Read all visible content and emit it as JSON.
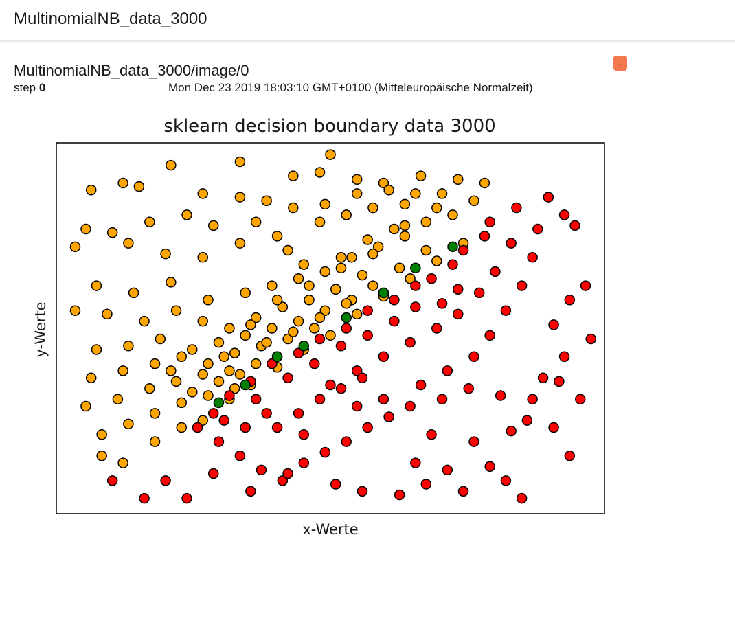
{
  "header": {
    "title": "MultinomialNB_data_3000"
  },
  "card": {
    "title": "MultinomialNB_data_3000/image/0",
    "step_label": "step",
    "step_value": "0",
    "timestamp": "Mon Dec 23 2019 18:03:10 GMT+0100 (Mitteleuropäische Normalzeit)",
    "menu_glyph": "."
  },
  "colors": {
    "accent": "#f4784e",
    "class_a": "#ffa500",
    "class_b": "#ff0000",
    "boundary": "#008000"
  },
  "chart_data": {
    "type": "scatter",
    "title": "sklearn decision boundary data 3000",
    "xlabel": "x-Werte",
    "ylabel": "y-Werte",
    "xlim": [
      0,
      100
    ],
    "ylim": [
      0,
      100
    ],
    "grid": false,
    "legend": "none",
    "series": [
      {
        "color": "#ffa500",
        "points": [
          [
            11,
            91
          ],
          [
            20,
            96
          ],
          [
            33,
            97
          ],
          [
            50,
            99
          ],
          [
            43,
            93
          ],
          [
            48,
            94
          ],
          [
            55,
            92
          ],
          [
            60,
            91
          ],
          [
            67,
            93
          ],
          [
            74,
            92
          ],
          [
            79,
            91
          ],
          [
            5,
            89
          ],
          [
            14,
            90
          ],
          [
            26,
            88
          ],
          [
            33,
            87
          ],
          [
            38,
            86
          ],
          [
            43,
            84
          ],
          [
            49,
            85
          ],
          [
            55,
            88
          ],
          [
            61,
            89
          ],
          [
            66,
            88
          ],
          [
            71,
            88
          ],
          [
            4,
            78
          ],
          [
            9,
            77
          ],
          [
            16,
            80
          ],
          [
            23,
            82
          ],
          [
            28,
            79
          ],
          [
            36,
            80
          ],
          [
            40,
            76
          ],
          [
            48,
            80
          ],
          [
            53,
            82
          ],
          [
            58,
            84
          ],
          [
            64,
            85
          ],
          [
            70,
            84
          ],
          [
            77,
            86
          ],
          [
            2,
            73
          ],
          [
            12,
            74
          ],
          [
            19,
            71
          ],
          [
            26,
            70
          ],
          [
            33,
            74
          ],
          [
            42,
            72
          ],
          [
            45,
            68
          ],
          [
            52,
            70
          ],
          [
            57,
            75
          ],
          [
            62,
            78
          ],
          [
            68,
            80
          ],
          [
            73,
            82
          ],
          [
            6,
            62
          ],
          [
            13,
            60
          ],
          [
            20,
            63
          ],
          [
            27,
            58
          ],
          [
            34,
            60
          ],
          [
            39,
            62
          ],
          [
            44,
            64
          ],
          [
            49,
            66
          ],
          [
            54,
            70
          ],
          [
            59,
            73
          ],
          [
            64,
            76
          ],
          [
            2,
            55
          ],
          [
            8,
            54
          ],
          [
            15,
            52
          ],
          [
            21,
            55
          ],
          [
            26,
            52
          ],
          [
            31,
            50
          ],
          [
            36,
            53
          ],
          [
            41,
            56
          ],
          [
            46,
            58
          ],
          [
            51,
            61
          ],
          [
            56,
            65
          ],
          [
            6,
            44
          ],
          [
            12,
            45
          ],
          [
            18,
            47
          ],
          [
            24,
            44
          ],
          [
            29,
            46
          ],
          [
            34,
            48
          ],
          [
            39,
            50
          ],
          [
            44,
            52
          ],
          [
            49,
            55
          ],
          [
            54,
            58
          ],
          [
            5,
            36
          ],
          [
            11,
            38
          ],
          [
            17,
            40
          ],
          [
            22,
            42
          ],
          [
            27,
            40
          ],
          [
            32,
            43
          ],
          [
            37,
            45
          ],
          [
            42,
            47
          ],
          [
            47,
            50
          ],
          [
            4,
            28
          ],
          [
            10,
            30
          ],
          [
            16,
            33
          ],
          [
            21,
            35
          ],
          [
            26,
            37
          ],
          [
            31,
            38
          ],
          [
            36,
            40
          ],
          [
            40,
            42
          ],
          [
            7,
            20
          ],
          [
            12,
            23
          ],
          [
            17,
            26
          ],
          [
            22,
            29
          ],
          [
            27,
            31
          ],
          [
            32,
            33
          ],
          [
            7,
            14
          ],
          [
            11,
            12
          ],
          [
            17,
            18
          ],
          [
            22,
            22
          ],
          [
            26,
            24
          ],
          [
            29,
            35
          ],
          [
            33,
            37
          ],
          [
            38,
            46
          ],
          [
            43,
            49
          ],
          [
            48,
            53
          ],
          [
            53,
            57
          ],
          [
            58,
            62
          ],
          [
            63,
            67
          ],
          [
            68,
            72
          ],
          [
            31,
            30
          ],
          [
            35,
            34
          ],
          [
            40,
            39
          ],
          [
            45,
            44
          ],
          [
            50,
            48
          ],
          [
            55,
            54
          ],
          [
            60,
            59
          ],
          [
            65,
            64
          ],
          [
            70,
            69
          ],
          [
            75,
            74
          ],
          [
            24,
            32
          ],
          [
            20,
            38
          ],
          [
            30,
            42
          ],
          [
            35,
            51
          ],
          [
            40,
            58
          ],
          [
            46,
            62
          ],
          [
            52,
            67
          ],
          [
            58,
            71
          ],
          [
            64,
            79
          ]
        ]
      },
      {
        "color": "#ff0000",
        "points": [
          [
            91,
            87
          ],
          [
            94,
            82
          ],
          [
            96,
            79
          ],
          [
            89,
            78
          ],
          [
            98,
            62
          ],
          [
            95,
            58
          ],
          [
            92,
            51
          ],
          [
            99,
            47
          ],
          [
            94,
            42
          ],
          [
            90,
            36
          ],
          [
            85,
            84
          ],
          [
            80,
            80
          ],
          [
            84,
            74
          ],
          [
            88,
            70
          ],
          [
            86,
            62
          ],
          [
            83,
            55
          ],
          [
            80,
            48
          ],
          [
            77,
            42
          ],
          [
            72,
            38
          ],
          [
            67,
            34
          ],
          [
            79,
            76
          ],
          [
            75,
            72
          ],
          [
            81,
            66
          ],
          [
            78,
            60
          ],
          [
            74,
            54
          ],
          [
            70,
            50
          ],
          [
            65,
            46
          ],
          [
            60,
            42
          ],
          [
            55,
            38
          ],
          [
            50,
            34
          ],
          [
            73,
            68
          ],
          [
            69,
            64
          ],
          [
            74,
            61
          ],
          [
            71,
            57
          ],
          [
            66,
            56
          ],
          [
            62,
            52
          ],
          [
            57,
            48
          ],
          [
            52,
            45
          ],
          [
            47,
            40
          ],
          [
            42,
            36
          ],
          [
            66,
            62
          ],
          [
            62,
            58
          ],
          [
            57,
            55
          ],
          [
            53,
            50
          ],
          [
            48,
            47
          ],
          [
            44,
            43
          ],
          [
            39,
            40
          ],
          [
            35,
            35
          ],
          [
            31,
            31
          ],
          [
            28,
            26
          ],
          [
            25,
            22
          ],
          [
            29,
            18
          ],
          [
            33,
            14
          ],
          [
            37,
            10
          ],
          [
            41,
            7
          ],
          [
            45,
            12
          ],
          [
            49,
            15
          ],
          [
            53,
            18
          ],
          [
            57,
            22
          ],
          [
            61,
            25
          ],
          [
            9,
            7
          ],
          [
            15,
            2
          ],
          [
            19,
            7
          ],
          [
            23,
            2
          ],
          [
            28,
            9
          ],
          [
            35,
            4
          ],
          [
            42,
            9
          ],
          [
            51,
            6
          ],
          [
            56,
            4
          ],
          [
            63,
            3
          ],
          [
            68,
            6
          ],
          [
            75,
            4
          ],
          [
            83,
            7
          ],
          [
            86,
            2
          ],
          [
            66,
            12
          ],
          [
            69,
            20
          ],
          [
            77,
            18
          ],
          [
            84,
            21
          ],
          [
            87,
            24
          ],
          [
            92,
            22
          ],
          [
            95,
            14
          ],
          [
            72,
            10
          ],
          [
            80,
            11
          ],
          [
            65,
            28
          ],
          [
            71,
            30
          ],
          [
            76,
            33
          ],
          [
            82,
            31
          ],
          [
            88,
            30
          ],
          [
            93,
            35
          ],
          [
            97,
            30
          ],
          [
            60,
            30
          ],
          [
            55,
            28
          ],
          [
            40,
            22
          ],
          [
            44,
            26
          ],
          [
            48,
            30
          ],
          [
            52,
            33
          ],
          [
            56,
            36
          ],
          [
            45,
            20
          ],
          [
            38,
            26
          ],
          [
            34,
            22
          ],
          [
            30,
            24
          ],
          [
            36,
            30
          ]
        ]
      },
      {
        "color": "#008000",
        "points": [
          [
            29,
            29
          ],
          [
            34,
            34
          ],
          [
            40,
            42
          ],
          [
            45,
            45
          ],
          [
            53,
            53
          ],
          [
            60,
            60
          ],
          [
            66,
            67
          ],
          [
            73,
            73
          ]
        ]
      }
    ]
  }
}
